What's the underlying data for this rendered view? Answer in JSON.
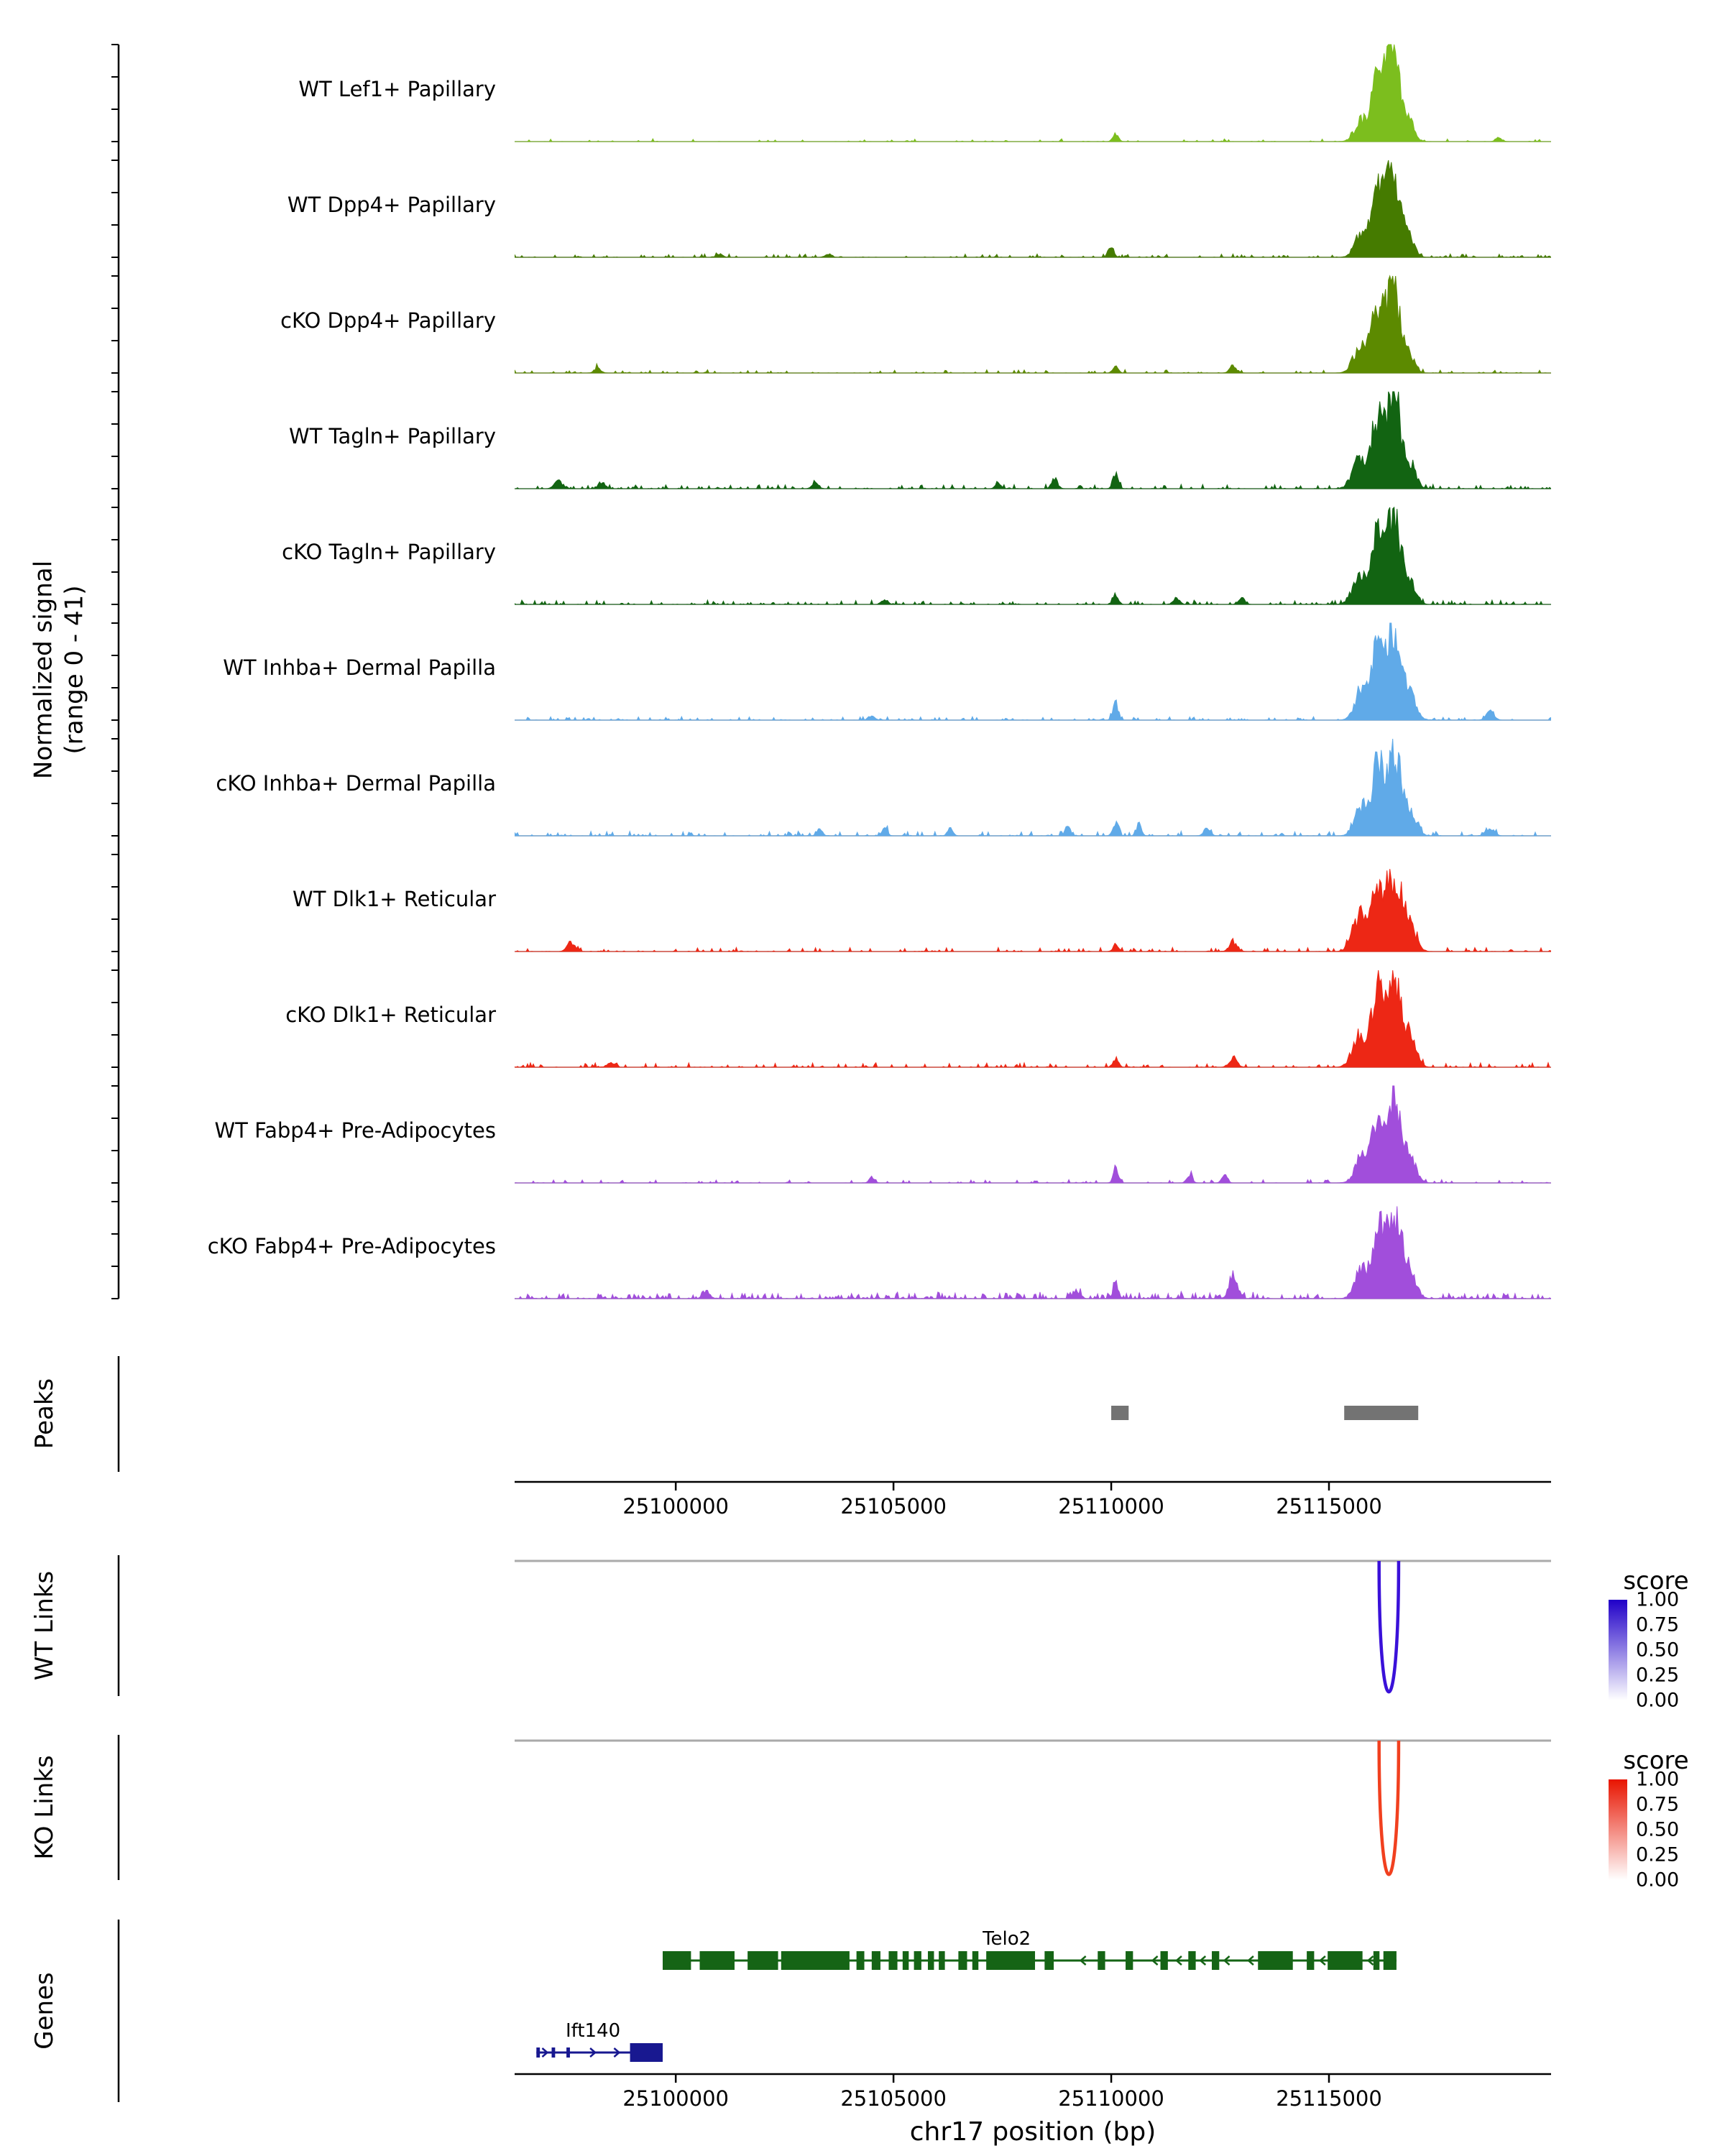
{
  "y_axis": {
    "label_line1": "Normalized signal",
    "label_line2": "(range 0 - 41)",
    "ylim": [
      0,
      41
    ]
  },
  "x_axis": {
    "title": "chr17 position (bp)",
    "range": [
      25096300,
      25120100
    ],
    "ticks": [
      25100000,
      25105000,
      25110000,
      25115000
    ],
    "tick_labels": [
      "25100000",
      "25105000",
      "25110000",
      "25115000"
    ]
  },
  "sections": {
    "peaks_label": "Peaks",
    "wt_links_label": "WT Links",
    "ko_links_label": "KO Links",
    "genes_label": "Genes"
  },
  "legend": {
    "title": "score",
    "tick_labels": [
      "1.00",
      "0.75",
      "0.50",
      "0.25",
      "0.00"
    ],
    "wt_color_high": "#2000C8",
    "ko_color_high": "#E81400",
    "color_low": "#FFFFFF"
  },
  "peaks": {
    "color": "#737373",
    "regions": [
      [
        25110000,
        25110400
      ],
      [
        25115350,
        25117050
      ]
    ]
  },
  "links": {
    "wt": {
      "anchor1": 25116150,
      "anchor2": 25116600,
      "score": 1.0,
      "color": "#3A11D9"
    },
    "ko": {
      "anchor1": 25116150,
      "anchor2": 25116600,
      "score": 1.0,
      "color": "#F1401F"
    }
  },
  "genes": [
    {
      "name": "Telo2",
      "strand": "-",
      "color": "#156415",
      "start": 25099700,
      "end": 25116550,
      "label_bp": 25107600,
      "exons": [
        [
          25099700,
          25100350,
          1
        ],
        [
          25100550,
          25101350,
          1
        ],
        [
          25101650,
          25102350,
          1
        ],
        [
          25102420,
          25103990,
          1
        ],
        [
          25104150,
          25104330,
          1
        ],
        [
          25104500,
          25104700,
          1
        ],
        [
          25104890,
          25105090,
          1
        ],
        [
          25105210,
          25105350,
          1
        ],
        [
          25105470,
          25105640,
          1
        ],
        [
          25105790,
          25105930,
          1
        ],
        [
          25106040,
          25106180,
          1
        ],
        [
          25106490,
          25106690,
          1
        ],
        [
          25106810,
          25106950,
          1
        ],
        [
          25107130,
          25108250,
          1
        ],
        [
          25108470,
          25108680,
          1
        ],
        [
          25109690,
          25109860,
          1
        ],
        [
          25110330,
          25110500,
          1
        ],
        [
          25111130,
          25111300,
          1
        ],
        [
          25111770,
          25111940,
          1
        ],
        [
          25112310,
          25112480,
          1
        ],
        [
          25113370,
          25114170,
          1
        ],
        [
          25114490,
          25114660,
          1
        ],
        [
          25114970,
          25115770,
          1
        ],
        [
          25116020,
          25116160,
          1
        ],
        [
          25116250,
          25116550,
          1
        ]
      ]
    },
    {
      "name": "Ift140",
      "strand": "+",
      "color": "#181890",
      "start": 25096800,
      "end": 25099700,
      "label_bp": 25098100,
      "exons": [
        [
          25096800,
          25096880,
          0
        ],
        [
          25097150,
          25097230,
          0
        ],
        [
          25097490,
          25097570,
          0
        ],
        [
          25098950,
          25099700,
          1
        ]
      ]
    }
  ],
  "chart_data": {
    "type": "area",
    "title": "",
    "xlabel": "chr17 position (bp)",
    "ylabel": "Normalized signal (range 0 - 41)",
    "xlim": [
      25096300,
      25120100
    ],
    "ylim": [
      0,
      41
    ],
    "tracks": [
      {
        "label": "WT Lef1+ Papillary",
        "color": "#7CBE1E",
        "noise_density": 0.18,
        "noise_level": 1.2,
        "peaks": [
          [
            25116450,
            180,
            40
          ],
          [
            25116100,
            120,
            24
          ],
          [
            25115750,
            150,
            9
          ],
          [
            25116850,
            120,
            7
          ],
          [
            25110100,
            60,
            3
          ],
          [
            25118900,
            70,
            1.5
          ]
        ]
      },
      {
        "label": "WT Dpp4+ Papillary",
        "color": "#457B00",
        "noise_density": 0.22,
        "noise_level": 1.4,
        "peaks": [
          [
            25116450,
            180,
            41
          ],
          [
            25116100,
            120,
            24
          ],
          [
            25115750,
            150,
            11
          ],
          [
            25116850,
            120,
            7
          ],
          [
            25110000,
            60,
            4
          ],
          [
            25103500,
            70,
            1.5
          ],
          [
            25101000,
            70,
            1.5
          ]
        ]
      },
      {
        "label": "cKO Dpp4+ Papillary",
        "color": "#5C8A00",
        "noise_density": 0.22,
        "noise_level": 1.4,
        "peaks": [
          [
            25116450,
            180,
            38
          ],
          [
            25116050,
            130,
            22
          ],
          [
            25115700,
            150,
            10
          ],
          [
            25116850,
            120,
            6
          ],
          [
            25110100,
            60,
            3
          ],
          [
            25112800,
            80,
            3
          ],
          [
            25098200,
            70,
            2
          ]
        ]
      },
      {
        "label": "WT Tagln+ Papillary",
        "color": "#126412",
        "noise_density": 0.3,
        "noise_level": 1.8,
        "peaks": [
          [
            25116480,
            170,
            41
          ],
          [
            25116100,
            130,
            27
          ],
          [
            25115700,
            160,
            13
          ],
          [
            25116900,
            120,
            8
          ],
          [
            25097300,
            90,
            3
          ],
          [
            25098300,
            80,
            2.5
          ],
          [
            25103200,
            70,
            3
          ],
          [
            25108700,
            70,
            4
          ],
          [
            25110100,
            60,
            6
          ],
          [
            25107400,
            60,
            2.5
          ]
        ]
      },
      {
        "label": "cKO Tagln+ Papillary",
        "color": "#126412",
        "noise_density": 0.3,
        "noise_level": 1.8,
        "peaks": [
          [
            25116480,
            170,
            40
          ],
          [
            25116100,
            130,
            25
          ],
          [
            25115700,
            160,
            12
          ],
          [
            25116900,
            120,
            7
          ],
          [
            25110100,
            60,
            4
          ],
          [
            25111500,
            70,
            2.5
          ],
          [
            25113000,
            70,
            2.5
          ],
          [
            25104800,
            70,
            2
          ]
        ]
      },
      {
        "label": "WT Inhba+ Dermal Papilla",
        "color": "#60AAE8",
        "noise_density": 0.25,
        "noise_level": 1.5,
        "peaks": [
          [
            25116500,
            170,
            38
          ],
          [
            25116120,
            130,
            30
          ],
          [
            25115750,
            150,
            13
          ],
          [
            25116900,
            130,
            9
          ],
          [
            25110100,
            60,
            7
          ],
          [
            25118700,
            90,
            3.5
          ],
          [
            25104500,
            70,
            2
          ]
        ]
      },
      {
        "label": "cKO Inhba+ Dermal Papilla",
        "color": "#60AAE8",
        "noise_density": 0.3,
        "noise_level": 2.0,
        "peaks": [
          [
            25116500,
            170,
            35
          ],
          [
            25116120,
            130,
            28
          ],
          [
            25115750,
            150,
            12
          ],
          [
            25116900,
            130,
            8
          ],
          [
            25110100,
            60,
            6
          ],
          [
            25110650,
            50,
            5
          ],
          [
            25109000,
            60,
            4
          ],
          [
            25112200,
            70,
            4
          ],
          [
            25104800,
            60,
            3
          ],
          [
            25106300,
            60,
            3
          ],
          [
            25103300,
            60,
            3
          ],
          [
            25118700,
            90,
            3.5
          ]
        ]
      },
      {
        "label": "WT Dlk1+ Reticular",
        "color": "#ED2715",
        "noise_density": 0.28,
        "noise_level": 1.7,
        "peaks": [
          [
            25116500,
            190,
            32
          ],
          [
            25116100,
            130,
            25
          ],
          [
            25115700,
            160,
            15
          ],
          [
            25116900,
            130,
            8
          ],
          [
            25097600,
            90,
            4
          ],
          [
            25110100,
            60,
            3
          ],
          [
            25112800,
            90,
            4
          ]
        ]
      },
      {
        "label": "cKO Dlk1+ Reticular",
        "color": "#ED2715",
        "noise_density": 0.3,
        "noise_level": 1.9,
        "peaks": [
          [
            25116500,
            180,
            41
          ],
          [
            25116100,
            130,
            29
          ],
          [
            25115700,
            160,
            13
          ],
          [
            25116900,
            130,
            9
          ],
          [
            25110100,
            60,
            4
          ],
          [
            25112800,
            90,
            4
          ],
          [
            25098500,
            80,
            2
          ]
        ]
      },
      {
        "label": "WT Fabp4+ Pre-Adipocytes",
        "color": "#A14EDB",
        "noise_density": 0.2,
        "noise_level": 1.4,
        "peaks": [
          [
            25116500,
            170,
            36
          ],
          [
            25116120,
            130,
            26
          ],
          [
            25115750,
            150,
            11
          ],
          [
            25116900,
            130,
            8
          ],
          [
            25110100,
            55,
            6
          ],
          [
            25111800,
            60,
            4
          ],
          [
            25112600,
            60,
            4
          ],
          [
            25104500,
            60,
            2
          ]
        ]
      },
      {
        "label": "cKO Fabp4+ Pre-Adipocytes",
        "color": "#A14EDB",
        "noise_density": 0.35,
        "noise_level": 2.2,
        "noise_regions": [
          [
            25103000,
            25113500,
            3.0
          ],
          [
            25096500,
            25102500,
            2.0
          ],
          [
            25117400,
            25119600,
            2.0
          ]
        ],
        "peaks": [
          [
            25116500,
            170,
            38
          ],
          [
            25116120,
            130,
            26
          ],
          [
            25115750,
            150,
            12
          ],
          [
            25116900,
            130,
            9
          ],
          [
            25112800,
            90,
            11
          ],
          [
            25110100,
            60,
            6
          ],
          [
            25109200,
            60,
            4
          ],
          [
            25100700,
            80,
            3
          ]
        ]
      }
    ]
  }
}
